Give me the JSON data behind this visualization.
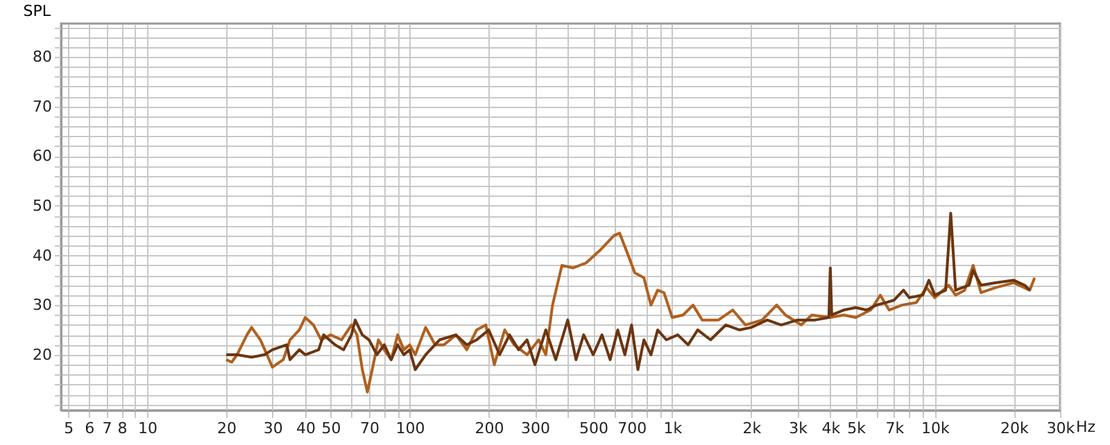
{
  "chart_data": {
    "type": "line",
    "ylabel": "SPL",
    "xlim": [
      4.7,
      30000
    ],
    "ylim": [
      8.8,
      86.7
    ],
    "log": "x",
    "grid": true,
    "line_style": "solid",
    "xticks": [
      5,
      6,
      7,
      8,
      {
        "value": 9,
        "label": null
      },
      10,
      20,
      30,
      40,
      50,
      {
        "value": 60,
        "label": null
      },
      70,
      {
        "value": 80,
        "label": null
      },
      {
        "value": 90,
        "label": null
      },
      100,
      200,
      300,
      {
        "value": 400,
        "label": null
      },
      500,
      {
        "value": 600,
        "label": null
      },
      700,
      {
        "value": 800,
        "label": null
      },
      {
        "value": 900,
        "label": null
      },
      {
        "value": 1000,
        "label": "1k"
      },
      {
        "value": 2000,
        "label": "2k"
      },
      {
        "value": 3000,
        "label": "3k"
      },
      {
        "value": 4000,
        "label": "4k"
      },
      {
        "value": 5000,
        "label": "5k"
      },
      {
        "value": 6000,
        "label": null
      },
      {
        "value": 7000,
        "label": "7k"
      },
      {
        "value": 8000,
        "label": null
      },
      {
        "value": 9000,
        "label": null
      },
      {
        "value": 10000,
        "label": "10k"
      },
      {
        "value": 20000,
        "label": "20k"
      },
      {
        "value": 30000,
        "label": "30k"
      }
    ],
    "xlabel": "Hz",
    "yticks": [
      {
        "value": 10,
        "label": null
      },
      {
        "value": 12,
        "label": null
      },
      {
        "value": 14,
        "label": null
      },
      {
        "value": 16,
        "label": null
      },
      {
        "value": 18,
        "label": null
      },
      20,
      {
        "value": 22,
        "label": null
      },
      {
        "value": 24,
        "label": null
      },
      {
        "value": 26,
        "label": null
      },
      {
        "value": 28,
        "label": null
      },
      30,
      {
        "value": 32,
        "label": null
      },
      {
        "value": 34,
        "label": null
      },
      {
        "value": 36,
        "label": null
      },
      {
        "value": 38,
        "label": null
      },
      40,
      {
        "value": 42,
        "label": null
      },
      {
        "value": 44,
        "label": null
      },
      {
        "value": 46,
        "label": null
      },
      {
        "value": 48,
        "label": null
      },
      50,
      {
        "value": 52,
        "label": null
      },
      {
        "value": 54,
        "label": null
      },
      {
        "value": 56,
        "label": null
      },
      {
        "value": 58,
        "label": null
      },
      60,
      {
        "value": 62,
        "label": null
      },
      {
        "value": 64,
        "label": null
      },
      {
        "value": 66,
        "label": null
      },
      {
        "value": 68,
        "label": null
      },
      70,
      {
        "value": 72,
        "label": null
      },
      {
        "value": 74,
        "label": null
      },
      {
        "value": 76,
        "label": null
      },
      {
        "value": 78,
        "label": null
      },
      80,
      {
        "value": 82,
        "label": null
      },
      {
        "value": 84,
        "label": null
      },
      {
        "value": 86,
        "label": null
      }
    ],
    "series": [
      {
        "color": "#b0601e",
        "x": [
          20,
          21,
          22,
          24,
          25,
          27,
          30,
          33,
          35,
          38,
          40,
          43,
          46,
          50,
          55,
          60,
          63,
          66,
          69,
          72,
          76,
          80,
          85,
          90,
          95,
          100,
          105,
          115,
          125,
          135,
          150,
          165,
          180,
          195,
          210,
          230,
          250,
          280,
          310,
          330,
          350,
          380,
          420,
          470,
          530,
          600,
          630,
          680,
          720,
          780,
          830,
          880,
          930,
          1000,
          1100,
          1200,
          1300,
          1500,
          1700,
          1900,
          2200,
          2500,
          2700,
          3100,
          3400,
          4000,
          4500,
          5000,
          5700,
          6200,
          6700,
          7500,
          8500,
          9300,
          10000,
          11300,
          12000,
          13000,
          14000,
          15000,
          17000,
          20000,
          23000,
          24000
        ],
        "values": [
          19,
          18.5,
          20,
          24,
          25.5,
          23,
          17.5,
          19,
          23,
          25,
          27.5,
          26,
          23,
          24,
          23,
          26,
          24,
          17,
          12.5,
          17,
          23,
          21,
          19,
          24,
          21,
          22,
          20,
          25.5,
          22,
          22,
          24,
          21,
          25,
          26,
          18,
          25,
          22,
          20,
          23,
          20,
          30,
          38,
          37.5,
          38.5,
          41,
          44,
          44.5,
          40,
          36.5,
          35.5,
          30,
          33,
          32.5,
          27.5,
          28,
          30,
          27,
          27,
          29,
          26,
          27,
          30,
          28,
          26,
          28,
          27.5,
          28,
          27.5,
          29,
          32,
          29,
          30,
          30.5,
          33.5,
          31.5,
          34,
          32,
          33,
          38,
          32.5,
          33.5,
          34.5,
          33,
          35.5
        ]
      },
      {
        "color": "#6b3510",
        "x": [
          20,
          22,
          25,
          28,
          30,
          34,
          35,
          38,
          40,
          45,
          47,
          52,
          56,
          60,
          62,
          66,
          70,
          75,
          80,
          85,
          90,
          95,
          100,
          105,
          115,
          130,
          150,
          165,
          180,
          200,
          220,
          240,
          260,
          280,
          300,
          330,
          360,
          400,
          430,
          460,
          500,
          540,
          580,
          620,
          660,
          700,
          740,
          780,
          830,
          880,
          950,
          1050,
          1150,
          1250,
          1400,
          1600,
          1800,
          2000,
          2300,
          2600,
          3000,
          3500,
          3950,
          4000,
          4050,
          4500,
          5000,
          5500,
          6000,
          6500,
          7000,
          7600,
          8000,
          9000,
          9500,
          10000,
          11000,
          11500,
          12000,
          13500,
          14000,
          15000,
          17000,
          20000,
          22000,
          23000
        ],
        "values": [
          20,
          20,
          19.5,
          20,
          21,
          22,
          19,
          21,
          20,
          21,
          24,
          22,
          21,
          24,
          27,
          24,
          23,
          20,
          22,
          19,
          22,
          20,
          21,
          17,
          20,
          23,
          24,
          22,
          23,
          25,
          20,
          24,
          21,
          23,
          18,
          25,
          19,
          27,
          19,
          24,
          20,
          24,
          19,
          25,
          20,
          26,
          17,
          23,
          20,
          25,
          23,
          24,
          22,
          25,
          23,
          26,
          25,
          25.5,
          27,
          26,
          27,
          27,
          27.5,
          37.5,
          28,
          29,
          29.5,
          29,
          30,
          30.5,
          31,
          33,
          31.5,
          32,
          35,
          32,
          33,
          48.5,
          33,
          34,
          37,
          34,
          34.5,
          35,
          34,
          33
        ]
      }
    ]
  }
}
